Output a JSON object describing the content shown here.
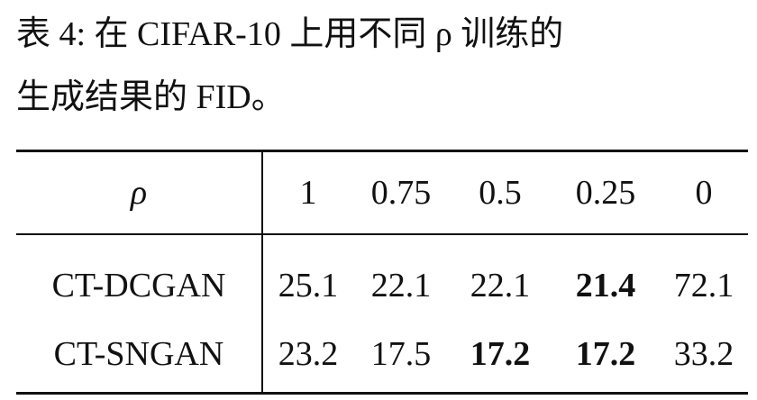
{
  "caption": [
    "表 4: 在 CIFAR-10 上用不同 ρ 训练的",
    "生成结果的 FID。"
  ],
  "table": {
    "header": [
      "ρ",
      "1",
      "0.75",
      "0.5",
      "0.25",
      "0"
    ],
    "rows": [
      {
        "label": "CT-DCGAN",
        "values": [
          "25.1",
          "22.1",
          "22.1",
          "21.4",
          "72.1"
        ],
        "bold": [
          3
        ]
      },
      {
        "label": "CT-SNGAN",
        "values": [
          "23.2",
          "17.5",
          "17.2",
          "17.2",
          "33.2"
        ],
        "bold": [
          2,
          3
        ]
      }
    ]
  }
}
